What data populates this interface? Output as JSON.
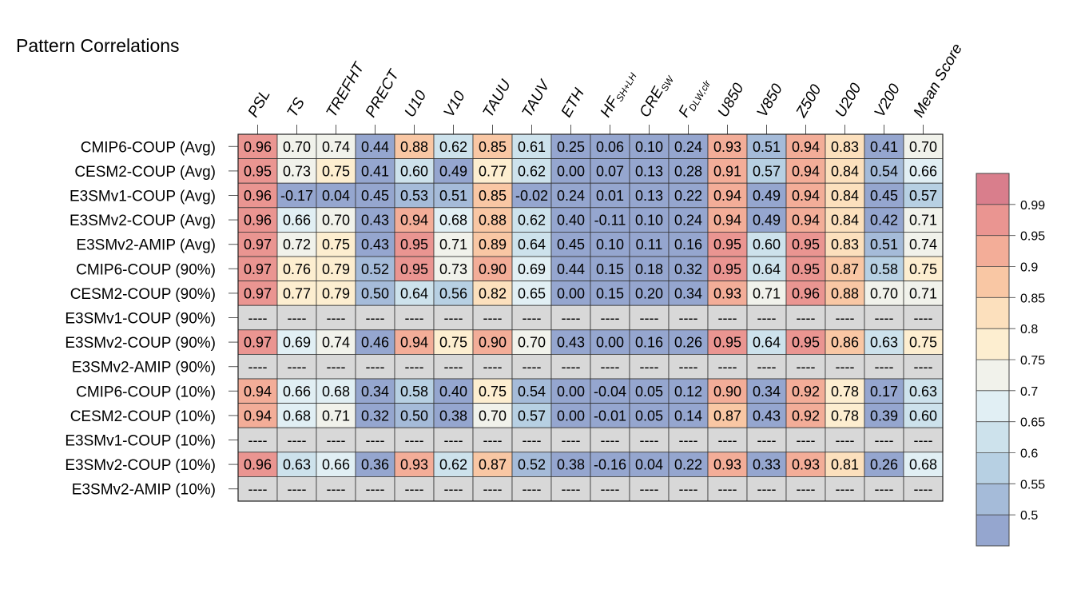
{
  "chart_data": {
    "type": "heatmap",
    "title": "Pattern Correlations",
    "columns": [
      {
        "main": "PSL"
      },
      {
        "main": "TS"
      },
      {
        "main": "TREFHT"
      },
      {
        "main": "PRECT"
      },
      {
        "main": "U10"
      },
      {
        "main": "V10"
      },
      {
        "main": "TAUU"
      },
      {
        "main": "TAUV"
      },
      {
        "main": "ETH"
      },
      {
        "main": "HF",
        "sub": "SH+LH"
      },
      {
        "main": "CRE",
        "sub": "SW"
      },
      {
        "main": "F",
        "sub": "DLW,clr"
      },
      {
        "main": "U850"
      },
      {
        "main": "V850"
      },
      {
        "main": "Z500"
      },
      {
        "main": "U200"
      },
      {
        "main": "V200"
      },
      {
        "main": "Mean Score"
      }
    ],
    "rows": [
      "CMIP6-COUP (Avg)",
      "CESM2-COUP (Avg)",
      "E3SMv1-COUP (Avg)",
      "E3SMv2-COUP (Avg)",
      "E3SMv2-AMIP (Avg)",
      "CMIP6-COUP (90%)",
      "CESM2-COUP (90%)",
      "E3SMv1-COUP (90%)",
      "E3SMv2-COUP (90%)",
      "E3SMv2-AMIP (90%)",
      "CMIP6-COUP (10%)",
      "CESM2-COUP (10%)",
      "E3SMv1-COUP (10%)",
      "E3SMv2-COUP (10%)",
      "E3SMv2-AMIP (10%)"
    ],
    "values": [
      [
        "0.96",
        "0.70",
        "0.74",
        "0.44",
        "0.88",
        "0.62",
        "0.85",
        "0.61",
        "0.25",
        "0.06",
        "0.10",
        "0.24",
        "0.93",
        "0.51",
        "0.94",
        "0.83",
        "0.41",
        "0.70"
      ],
      [
        "0.95",
        "0.73",
        "0.75",
        "0.41",
        "0.60",
        "0.49",
        "0.77",
        "0.62",
        "0.00",
        "0.07",
        "0.13",
        "0.28",
        "0.91",
        "0.57",
        "0.94",
        "0.84",
        "0.54",
        "0.66"
      ],
      [
        "0.96",
        "-0.17",
        "0.04",
        "0.45",
        "0.53",
        "0.51",
        "0.85",
        "-0.02",
        "0.24",
        "0.01",
        "0.13",
        "0.22",
        "0.94",
        "0.49",
        "0.94",
        "0.84",
        "0.45",
        "0.57"
      ],
      [
        "0.96",
        "0.66",
        "0.70",
        "0.43",
        "0.94",
        "0.68",
        "0.88",
        "0.62",
        "0.40",
        "-0.11",
        "0.10",
        "0.24",
        "0.94",
        "0.49",
        "0.94",
        "0.84",
        "0.42",
        "0.71"
      ],
      [
        "0.97",
        "0.72",
        "0.75",
        "0.43",
        "0.95",
        "0.71",
        "0.89",
        "0.64",
        "0.45",
        "0.10",
        "0.11",
        "0.16",
        "0.95",
        "0.60",
        "0.95",
        "0.83",
        "0.51",
        "0.74"
      ],
      [
        "0.97",
        "0.76",
        "0.79",
        "0.52",
        "0.95",
        "0.73",
        "0.90",
        "0.69",
        "0.44",
        "0.15",
        "0.18",
        "0.32",
        "0.95",
        "0.64",
        "0.95",
        "0.87",
        "0.58",
        "0.75"
      ],
      [
        "0.97",
        "0.77",
        "0.79",
        "0.50",
        "0.64",
        "0.56",
        "0.82",
        "0.65",
        "0.00",
        "0.15",
        "0.20",
        "0.34",
        "0.93",
        "0.71",
        "0.96",
        "0.88",
        "0.70",
        "0.71"
      ],
      [
        "----",
        "----",
        "----",
        "----",
        "----",
        "----",
        "----",
        "----",
        "----",
        "----",
        "----",
        "----",
        "----",
        "----",
        "----",
        "----",
        "----",
        "----"
      ],
      [
        "0.97",
        "0.69",
        "0.74",
        "0.46",
        "0.94",
        "0.75",
        "0.90",
        "0.70",
        "0.43",
        "0.00",
        "0.16",
        "0.26",
        "0.95",
        "0.64",
        "0.95",
        "0.86",
        "0.63",
        "0.75"
      ],
      [
        "----",
        "----",
        "----",
        "----",
        "----",
        "----",
        "----",
        "----",
        "----",
        "----",
        "----",
        "----",
        "----",
        "----",
        "----",
        "----",
        "----",
        "----"
      ],
      [
        "0.94",
        "0.66",
        "0.68",
        "0.34",
        "0.58",
        "0.40",
        "0.75",
        "0.54",
        "0.00",
        "-0.04",
        "0.05",
        "0.12",
        "0.90",
        "0.34",
        "0.92",
        "0.78",
        "0.17",
        "0.63"
      ],
      [
        "0.94",
        "0.68",
        "0.71",
        "0.32",
        "0.50",
        "0.38",
        "0.70",
        "0.57",
        "0.00",
        "-0.01",
        "0.05",
        "0.14",
        "0.87",
        "0.43",
        "0.92",
        "0.78",
        "0.39",
        "0.60"
      ],
      [
        "----",
        "----",
        "----",
        "----",
        "----",
        "----",
        "----",
        "----",
        "----",
        "----",
        "----",
        "----",
        "----",
        "----",
        "----",
        "----",
        "----",
        "----"
      ],
      [
        "0.96",
        "0.63",
        "0.66",
        "0.36",
        "0.93",
        "0.62",
        "0.87",
        "0.52",
        "0.38",
        "-0.16",
        "0.04",
        "0.22",
        "0.93",
        "0.33",
        "0.93",
        "0.81",
        "0.26",
        "0.68"
      ],
      [
        "----",
        "----",
        "----",
        "----",
        "----",
        "----",
        "----",
        "----",
        "----",
        "----",
        "----",
        "----",
        "----",
        "----",
        "----",
        "----",
        "----",
        "----"
      ]
    ],
    "missing_label": "----",
    "colorbar": {
      "levels": [
        0.5,
        0.55,
        0.6,
        0.65,
        0.7,
        0.75,
        0.8,
        0.85,
        0.9,
        0.95,
        0.99
      ],
      "tick_labels": [
        "0.5",
        "0.55",
        "0.6",
        "0.65",
        "0.7",
        "0.75",
        "0.8",
        "0.85",
        "0.9",
        "0.95",
        "0.99"
      ],
      "colors": [
        "#95a6cf",
        "#a5bbd9",
        "#b7d0e3",
        "#cde2ec",
        "#e1eff4",
        "#f1f2eb",
        "#fdeed0",
        "#fce0bd",
        "#f9c7a4",
        "#f3ad98",
        "#ea9591",
        "#d97e8c"
      ],
      "missing_color": "#d8d8d8"
    }
  }
}
